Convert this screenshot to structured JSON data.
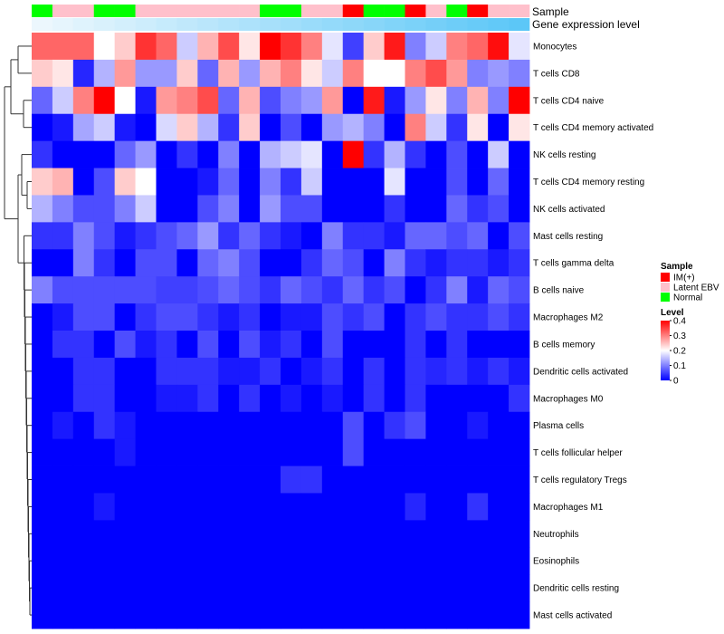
{
  "chart_data": {
    "type": "heatmap",
    "annotation_labels": [
      "Sample",
      "Gene expression level"
    ],
    "sample_groups": [
      "Normal",
      "Latent EBV",
      "Latent EBV",
      "Normal",
      "Normal",
      "Latent EBV",
      "Latent EBV",
      "Latent EBV",
      "Latent EBV",
      "Latent EBV",
      "Latent EBV",
      "Normal",
      "Normal",
      "Latent EBV",
      "Latent EBV",
      "IM(+)",
      "Normal",
      "Normal",
      "IM(+)",
      "Latent EBV",
      "Normal",
      "IM(+)",
      "Latent EBV",
      "Latent EBV"
    ],
    "gene_expression_level": [
      0.0,
      0.04,
      0.08,
      0.12,
      0.16,
      0.2,
      0.24,
      0.28,
      0.32,
      0.36,
      0.4,
      0.44,
      0.48,
      0.52,
      0.56,
      0.6,
      0.64,
      0.68,
      0.72,
      0.76,
      0.8,
      0.84,
      0.88,
      0.92
    ],
    "rows": [
      "Monocytes",
      "T cells CD8",
      "T cells CD4 naive",
      "T cells CD4 memory activated",
      "NK cells resting",
      "T cells CD4 memory resting",
      "NK cells activated",
      "Mast cells resting",
      "T cells gamma delta",
      "B cells naive",
      "Macrophages M2",
      "B cells memory",
      "Dendritic cells activated",
      "Macrophages M0",
      "Plasma cells",
      "T cells follicular helper",
      "T cells regulatory  Tregs",
      "Macrophages M1",
      "Neutrophils",
      "Eosinophils",
      "Dendritic cells resting",
      "Mast cells activated"
    ],
    "values": [
      [
        0.32,
        0.32,
        0.32,
        0.2,
        0.24,
        0.36,
        0.32,
        0.16,
        0.26,
        0.34,
        0.22,
        0.4,
        0.36,
        0.3,
        0.18,
        0.05,
        0.24,
        0.38,
        0.1,
        0.16,
        0.3,
        0.32,
        0.39,
        0.18
      ],
      [
        0.24,
        0.22,
        0.03,
        0.14,
        0.28,
        0.12,
        0.12,
        0.24,
        0.08,
        0.26,
        0.12,
        0.26,
        0.3,
        0.22,
        0.16,
        0.3,
        0.2,
        0.2,
        0.3,
        0.34,
        0.28,
        0.1,
        0.12,
        0.1
      ],
      [
        0.08,
        0.16,
        0.3,
        0.4,
        0.2,
        0.02,
        0.28,
        0.3,
        0.34,
        0.08,
        0.26,
        0.06,
        0.1,
        0.12,
        0.28,
        0.0,
        0.38,
        0.02,
        0.12,
        0.22,
        0.1,
        0.26,
        0.1,
        0.4
      ],
      [
        0.0,
        0.02,
        0.13,
        0.16,
        0.02,
        0.0,
        0.17,
        0.24,
        0.14,
        0.04,
        0.24,
        0.0,
        0.06,
        0.0,
        0.12,
        0.14,
        0.1,
        0.0,
        0.3,
        0.16,
        0.04,
        0.22,
        0.0,
        0.22
      ],
      [
        0.04,
        0.0,
        0.0,
        0.0,
        0.08,
        0.12,
        0.0,
        0.04,
        0.0,
        0.1,
        0.0,
        0.14,
        0.16,
        0.18,
        0.0,
        0.4,
        0.04,
        0.14,
        0.04,
        0.0,
        0.06,
        0.0,
        0.16,
        0.0
      ],
      [
        0.24,
        0.26,
        0.0,
        0.06,
        0.24,
        0.2,
        0.0,
        0.0,
        0.02,
        0.08,
        0.0,
        0.1,
        0.04,
        0.16,
        0.0,
        0.0,
        0.0,
        0.18,
        0.0,
        0.0,
        0.06,
        0.0,
        0.08,
        0.0
      ],
      [
        0.14,
        0.1,
        0.06,
        0.06,
        0.1,
        0.16,
        0.0,
        0.0,
        0.06,
        0.1,
        0.0,
        0.12,
        0.06,
        0.06,
        0.0,
        0.0,
        0.0,
        0.04,
        0.0,
        0.0,
        0.08,
        0.04,
        0.06,
        0.0
      ],
      [
        0.04,
        0.04,
        0.1,
        0.06,
        0.02,
        0.04,
        0.06,
        0.08,
        0.12,
        0.04,
        0.08,
        0.04,
        0.02,
        0.0,
        0.1,
        0.04,
        0.04,
        0.02,
        0.08,
        0.08,
        0.06,
        0.08,
        0.0,
        0.06
      ],
      [
        0.0,
        0.0,
        0.1,
        0.04,
        0.0,
        0.06,
        0.06,
        0.0,
        0.08,
        0.1,
        0.06,
        0.0,
        0.0,
        0.04,
        0.08,
        0.06,
        0.0,
        0.1,
        0.04,
        0.02,
        0.04,
        0.04,
        0.02,
        0.04
      ],
      [
        0.1,
        0.06,
        0.06,
        0.06,
        0.06,
        0.06,
        0.05,
        0.05,
        0.06,
        0.08,
        0.06,
        0.04,
        0.08,
        0.06,
        0.04,
        0.08,
        0.04,
        0.06,
        0.0,
        0.04,
        0.1,
        0.02,
        0.08,
        0.06
      ],
      [
        0.0,
        0.02,
        0.06,
        0.06,
        0.0,
        0.04,
        0.06,
        0.06,
        0.04,
        0.02,
        0.04,
        0.0,
        0.02,
        0.02,
        0.06,
        0.04,
        0.06,
        0.0,
        0.04,
        0.06,
        0.04,
        0.04,
        0.06,
        0.04
      ],
      [
        0.0,
        0.04,
        0.04,
        0.0,
        0.06,
        0.02,
        0.04,
        0.0,
        0.06,
        0.0,
        0.06,
        0.02,
        0.04,
        0.0,
        0.06,
        0.0,
        0.0,
        0.0,
        0.04,
        0.0,
        0.04,
        0.0,
        0.0,
        0.0
      ],
      [
        0.0,
        0.0,
        0.04,
        0.04,
        0.0,
        0.0,
        0.04,
        0.04,
        0.04,
        0.02,
        0.02,
        0.04,
        0.0,
        0.02,
        0.04,
        0.0,
        0.04,
        0.0,
        0.04,
        0.03,
        0.04,
        0.02,
        0.04,
        0.02
      ],
      [
        0.0,
        0.0,
        0.04,
        0.04,
        0.0,
        0.0,
        0.02,
        0.02,
        0.04,
        0.0,
        0.04,
        0.0,
        0.02,
        0.0,
        0.02,
        0.0,
        0.04,
        0.0,
        0.04,
        0.0,
        0.0,
        0.0,
        0.0,
        0.04
      ],
      [
        0.0,
        0.02,
        0.0,
        0.04,
        0.02,
        0.0,
        0.0,
        0.0,
        0.0,
        0.0,
        0.0,
        0.0,
        0.0,
        0.0,
        0.0,
        0.06,
        0.0,
        0.04,
        0.06,
        0.0,
        0.0,
        0.02,
        0.0,
        0.0
      ],
      [
        0.0,
        0.0,
        0.0,
        0.0,
        0.02,
        0.0,
        0.0,
        0.0,
        0.0,
        0.0,
        0.0,
        0.0,
        0.0,
        0.0,
        0.0,
        0.06,
        0.0,
        0.0,
        0.0,
        0.0,
        0.0,
        0.0,
        0.0,
        0.0
      ],
      [
        0.0,
        0.0,
        0.0,
        0.0,
        0.0,
        0.0,
        0.0,
        0.0,
        0.0,
        0.0,
        0.0,
        0.0,
        0.04,
        0.04,
        0.0,
        0.0,
        0.0,
        0.0,
        0.0,
        0.0,
        0.0,
        0.0,
        0.0,
        0.0
      ],
      [
        0.0,
        0.0,
        0.0,
        0.02,
        0.0,
        0.0,
        0.0,
        0.0,
        0.0,
        0.0,
        0.0,
        0.0,
        0.0,
        0.0,
        0.0,
        0.0,
        0.0,
        0.0,
        0.03,
        0.0,
        0.0,
        0.04,
        0.0,
        0.0
      ],
      [
        0.0,
        0.0,
        0.0,
        0.0,
        0.0,
        0.0,
        0.0,
        0.0,
        0.0,
        0.0,
        0.0,
        0.0,
        0.0,
        0.0,
        0.0,
        0.0,
        0.0,
        0.0,
        0.0,
        0.0,
        0.0,
        0.0,
        0.0,
        0.0
      ],
      [
        0.0,
        0.0,
        0.0,
        0.0,
        0.0,
        0.0,
        0.0,
        0.0,
        0.0,
        0.0,
        0.0,
        0.0,
        0.0,
        0.0,
        0.0,
        0.0,
        0.0,
        0.0,
        0.0,
        0.0,
        0.0,
        0.0,
        0.0,
        0.0
      ],
      [
        0.0,
        0.0,
        0.0,
        0.0,
        0.0,
        0.0,
        0.0,
        0.0,
        0.0,
        0.0,
        0.0,
        0.0,
        0.0,
        0.0,
        0.0,
        0.0,
        0.0,
        0.0,
        0.0,
        0.0,
        0.0,
        0.0,
        0.0,
        0.0
      ],
      [
        0.0,
        0.0,
        0.0,
        0.0,
        0.0,
        0.0,
        0.0,
        0.0,
        0.0,
        0.0,
        0.0,
        0.0,
        0.0,
        0.0,
        0.0,
        0.0,
        0.0,
        0.0,
        0.0,
        0.0,
        0.0,
        0.0,
        0.0,
        0.0
      ]
    ],
    "color_scale": {
      "min": 0,
      "mid": 0.2,
      "max": 0.4,
      "low_color": "#0000ff",
      "mid_color": "#ffffff",
      "high_color": "#ff0000"
    },
    "legend_sample": {
      "title": "Sample",
      "items": [
        {
          "label": "IM(+)",
          "color": "#ff0000"
        },
        {
          "label": "Latent EBV",
          "color": "#ffc0cb"
        },
        {
          "label": "Normal",
          "color": "#00ff00"
        }
      ]
    },
    "legend_level": {
      "title": "Level",
      "ticks": [
        "0.4",
        "0.3",
        "0.2",
        "0.1",
        "0"
      ]
    },
    "expression_colors": {
      "low": "#ecf7fd",
      "high": "#4fc3f7"
    },
    "dendrogram": "row-clustering"
  }
}
